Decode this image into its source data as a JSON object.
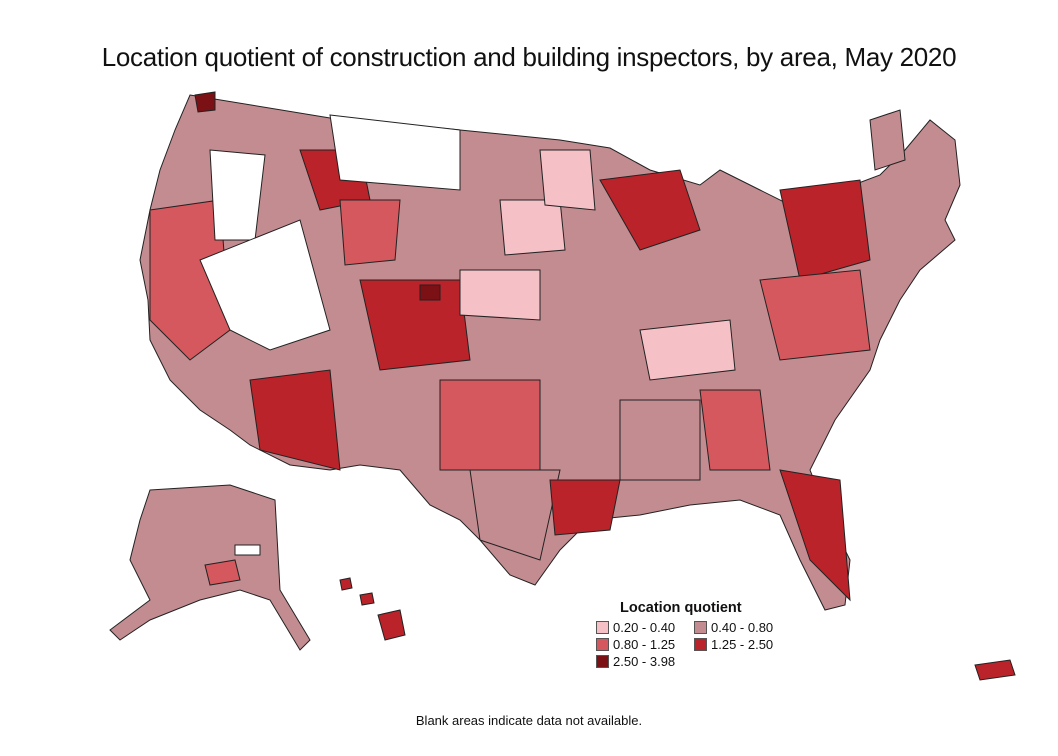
{
  "title": "Location quotient of construction and building inspectors, by area, May 2020",
  "legend": {
    "title": "Location quotient",
    "items": [
      {
        "label": "0.20 - 0.40",
        "color": "#f5c1c6"
      },
      {
        "label": "0.40 - 0.80",
        "color": "#c38c91"
      },
      {
        "label": "0.80 - 1.25",
        "color": "#d4585d"
      },
      {
        "label": "1.25 - 2.50",
        "color": "#b92329"
      },
      {
        "label": "2.50 - 3.98",
        "color": "#7b1115"
      }
    ]
  },
  "note": "Blank areas indicate data not available.",
  "colors": {
    "no_data": "#ffffff",
    "border": "#222222"
  }
}
